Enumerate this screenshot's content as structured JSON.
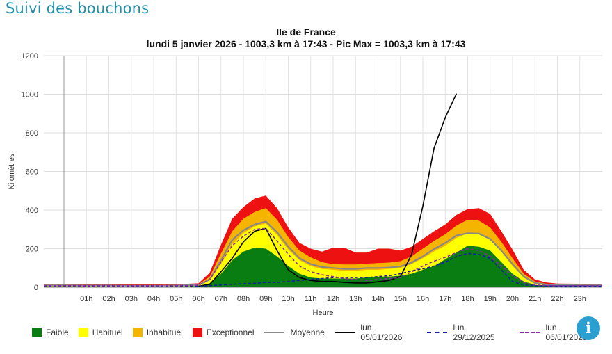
{
  "page": {
    "heading": "Suivi des bouchons",
    "info_icon": "info-icon",
    "info_glyph": "i"
  },
  "chart": {
    "title_region": "Ile de France",
    "title_detail": "lundi 5 janvier 2026 - 1003,3 km à 17:43 - Pic Max = 1003,3 km à 17:43"
  },
  "legend": [
    {
      "key": "faible",
      "label": "Faible",
      "color": "#0a7d12",
      "kind": "area"
    },
    {
      "key": "habituel",
      "label": "Habituel",
      "color": "#ffff00",
      "kind": "area"
    },
    {
      "key": "inhabituel",
      "label": "Inhabituel",
      "color": "#f5b400",
      "kind": "area"
    },
    {
      "key": "exceptionnel",
      "label": "Exceptionnel",
      "color": "#ee1111",
      "kind": "area"
    },
    {
      "key": "moyenne",
      "label": "Moyenne",
      "color": "#888888",
      "kind": "solid"
    },
    {
      "key": "day",
      "label": "lun. 05/01/2026",
      "color": "#000000",
      "kind": "solid"
    },
    {
      "key": "ref1",
      "label": "lun. 29/12/2025",
      "color": "#1a1aa8",
      "kind": "dashed"
    },
    {
      "key": "ref2",
      "label": "lun. 06/01/2025",
      "color": "#8a2aa8",
      "kind": "dashed"
    }
  ],
  "chart_data": {
    "type": "area",
    "title": "Ile de France",
    "subtitle": "lundi 5 janvier 2026 - 1003,3 km à 17:43 - Pic Max = 1003,3 km à 17:43",
    "xlabel": "Heure",
    "ylabel": "Kilomètres",
    "ylim": [
      0,
      1200
    ],
    "yticks": [
      0,
      200,
      400,
      600,
      800,
      1000,
      1200
    ],
    "xlim": [
      -0.9,
      24
    ],
    "xticks": [
      1,
      2,
      3,
      4,
      5,
      6,
      7,
      8,
      9,
      10,
      11,
      12,
      13,
      14,
      15,
      16,
      17,
      18,
      19,
      20,
      21,
      22,
      23
    ],
    "xtick_labels": [
      "01h",
      "02h",
      "03h",
      "04h",
      "05h",
      "06h",
      "07h",
      "08h",
      "09h",
      "10h",
      "11h",
      "12h",
      "13h",
      "14h",
      "15h",
      "16h",
      "17h",
      "18h",
      "19h",
      "20h",
      "21h",
      "22h",
      "23h"
    ],
    "grid": true,
    "legend_position": "bottom",
    "x": [
      -0.9,
      0,
      1,
      2,
      3,
      4,
      5,
      6,
      6.5,
      7,
      7.5,
      8,
      8.5,
      9,
      9.5,
      10,
      10.5,
      11,
      11.5,
      12,
      12.5,
      13,
      13.5,
      14,
      14.5,
      15,
      15.5,
      16,
      16.5,
      17,
      17.5,
      18,
      18.5,
      19,
      19.5,
      20,
      20.5,
      21,
      21.5,
      22,
      23,
      24
    ],
    "series": [
      {
        "name": "Faible",
        "kind": "band",
        "values": [
          5,
          5,
          4,
          4,
          4,
          4,
          4,
          6,
          20,
          70,
          140,
          185,
          205,
          200,
          160,
          110,
          70,
          50,
          45,
          45,
          45,
          45,
          50,
          55,
          55,
          60,
          70,
          90,
          110,
          145,
          180,
          215,
          210,
          190,
          130,
          70,
          30,
          12,
          8,
          6,
          5,
          5
        ]
      },
      {
        "name": "Habituel",
        "kind": "band",
        "values": [
          9,
          9,
          8,
          8,
          7,
          7,
          8,
          10,
          35,
          120,
          220,
          280,
          315,
          330,
          270,
          195,
          140,
          110,
          95,
          90,
          85,
          85,
          90,
          90,
          95,
          100,
          120,
          150,
          185,
          215,
          255,
          280,
          275,
          245,
          185,
          110,
          50,
          20,
          13,
          10,
          9,
          9
        ]
      },
      {
        "name": "Inhabituel",
        "kind": "band",
        "values": [
          13,
          13,
          12,
          11,
          11,
          11,
          12,
          15,
          55,
          175,
          290,
          355,
          390,
          410,
          350,
          260,
          190,
          155,
          130,
          120,
          118,
          118,
          122,
          125,
          128,
          135,
          160,
          200,
          240,
          275,
          320,
          350,
          345,
          310,
          235,
          150,
          70,
          30,
          18,
          14,
          13,
          12
        ]
      },
      {
        "name": "Exceptionnel",
        "kind": "band",
        "values": [
          18,
          17,
          16,
          15,
          15,
          15,
          16,
          20,
          75,
          220,
          355,
          415,
          460,
          475,
          410,
          310,
          230,
          200,
          185,
          205,
          205,
          180,
          180,
          200,
          200,
          190,
          210,
          250,
          290,
          325,
          375,
          405,
          410,
          380,
          290,
          195,
          90,
          40,
          25,
          19,
          18,
          17
        ]
      },
      {
        "name": "Moyenne",
        "kind": "line",
        "values": [
          10,
          10,
          9,
          9,
          8,
          8,
          9,
          12,
          40,
          140,
          245,
          295,
          325,
          340,
          285,
          210,
          150,
          120,
          105,
          100,
          95,
          95,
          100,
          100,
          102,
          108,
          128,
          160,
          198,
          230,
          268,
          280,
          278,
          250,
          190,
          120,
          55,
          22,
          14,
          11,
          10,
          10
        ]
      },
      {
        "name": "lun. 05/01/2026",
        "kind": "line",
        "values": [
          null,
          null,
          null,
          null,
          null,
          null,
          null,
          5,
          15,
          80,
          150,
          235,
          290,
          305,
          190,
          90,
          50,
          35,
          30,
          30,
          25,
          22,
          22,
          28,
          35,
          55,
          170,
          420,
          720,
          880,
          1003.3,
          null,
          null,
          null,
          null,
          null,
          null,
          null,
          null,
          null,
          null,
          null
        ]
      },
      {
        "name": "lun. 29/12/2025",
        "kind": "dashed",
        "values": [
          5,
          5,
          5,
          6,
          6,
          6,
          6,
          6,
          8,
          12,
          15,
          18,
          20,
          25,
          25,
          30,
          35,
          40,
          45,
          50,
          50,
          50,
          50,
          55,
          60,
          70,
          85,
          95,
          110,
          130,
          160,
          175,
          170,
          150,
          90,
          30,
          12,
          8,
          7,
          6,
          6,
          5
        ]
      },
      {
        "name": "lun. 06/01/2025",
        "kind": "dashed",
        "values": [
          8,
          8,
          8,
          8,
          8,
          8,
          8,
          10,
          40,
          130,
          215,
          265,
          300,
          305,
          240,
          170,
          110,
          80,
          65,
          55,
          45,
          40,
          35,
          40,
          45,
          50,
          80,
          110,
          135,
          155,
          180,
          200,
          190,
          160,
          110,
          60,
          25,
          12,
          9,
          8,
          8,
          8
        ]
      }
    ]
  }
}
